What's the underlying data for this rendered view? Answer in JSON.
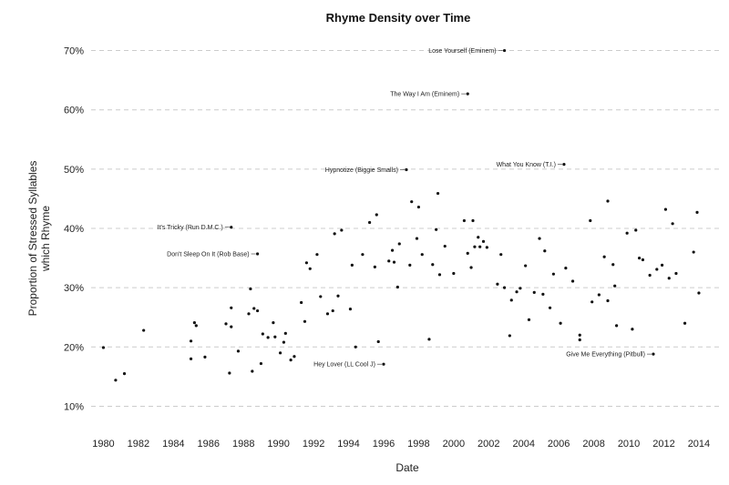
{
  "chart_data": {
    "type": "scatter",
    "title": "Rhyme Density over Time",
    "xlabel": "Date",
    "ylabel_lines": [
      "Proportion of Stressed Syllables",
      "which Rhyme"
    ],
    "xlim": [
      1979.3,
      2015.2
    ],
    "ylim": [
      7,
      73
    ],
    "x_ticks": [
      1980,
      1982,
      1984,
      1986,
      1988,
      1990,
      1992,
      1994,
      1996,
      1998,
      2000,
      2002,
      2004,
      2006,
      2008,
      2010,
      2012,
      2014
    ],
    "y_ticks": [
      {
        "value": 10,
        "label": "10%"
      },
      {
        "value": 20,
        "label": "20%"
      },
      {
        "value": 30,
        "label": "30%"
      },
      {
        "value": 40,
        "label": "40%"
      },
      {
        "value": 50,
        "label": "50%"
      },
      {
        "value": 60,
        "label": "60%"
      },
      {
        "value": 70,
        "label": "70%"
      }
    ],
    "grid": "horizontal dashed",
    "point_color": "#111111",
    "annotations": [
      {
        "label": "Lose Yourself (Eminem)",
        "x": 2002.9,
        "y": 70.0
      },
      {
        "label": "The Way I Am (Eminem)",
        "x": 2000.8,
        "y": 62.7
      },
      {
        "label": "What You Know (T.I.)",
        "x": 2006.3,
        "y": 50.8
      },
      {
        "label": "Hypnotize (Biggie Smalls)",
        "x": 1997.3,
        "y": 49.9
      },
      {
        "label": "It's Tricky (Run D.M.C.)",
        "x": 1987.3,
        "y": 40.2
      },
      {
        "label": "Don't Sleep On It (Rob Base)",
        "x": 1988.8,
        "y": 35.7
      },
      {
        "label": "Hey Lover (LL Cool J)",
        "x": 1996.0,
        "y": 17.1
      },
      {
        "label": "Give Me Everything (Pitbull)",
        "x": 2011.4,
        "y": 18.8
      }
    ],
    "points": [
      [
        1980.0,
        19.9
      ],
      [
        1980.7,
        14.4
      ],
      [
        1981.2,
        15.5
      ],
      [
        1982.3,
        22.8
      ],
      [
        1985.0,
        21.0
      ],
      [
        1985.0,
        18.0
      ],
      [
        1985.2,
        24.1
      ],
      [
        1985.3,
        23.6
      ],
      [
        1985.8,
        18.3
      ],
      [
        1987.0,
        23.9
      ],
      [
        1987.2,
        15.6
      ],
      [
        1987.3,
        26.6
      ],
      [
        1987.3,
        23.4
      ],
      [
        1987.7,
        19.3
      ],
      [
        1988.3,
        25.6
      ],
      [
        1988.4,
        29.8
      ],
      [
        1988.5,
        15.9
      ],
      [
        1988.6,
        26.5
      ],
      [
        1988.8,
        26.1
      ],
      [
        1989.0,
        17.2
      ],
      [
        1989.1,
        22.2
      ],
      [
        1989.4,
        21.6
      ],
      [
        1989.7,
        24.1
      ],
      [
        1989.8,
        21.7
      ],
      [
        1990.1,
        19.0
      ],
      [
        1990.3,
        20.8
      ],
      [
        1990.4,
        22.3
      ],
      [
        1990.7,
        17.8
      ],
      [
        1990.9,
        18.4
      ],
      [
        1991.3,
        27.5
      ],
      [
        1991.5,
        24.3
      ],
      [
        1991.6,
        34.2
      ],
      [
        1991.8,
        33.2
      ],
      [
        1992.2,
        35.6
      ],
      [
        1992.4,
        28.5
      ],
      [
        1992.8,
        25.6
      ],
      [
        1993.1,
        26.1
      ],
      [
        1993.2,
        39.1
      ],
      [
        1993.4,
        28.6
      ],
      [
        1993.6,
        39.7
      ],
      [
        1994.1,
        26.4
      ],
      [
        1994.2,
        33.8
      ],
      [
        1994.4,
        20.0
      ],
      [
        1994.8,
        35.6
      ],
      [
        1995.2,
        41.0
      ],
      [
        1995.5,
        33.5
      ],
      [
        1995.6,
        42.3
      ],
      [
        1995.7,
        20.9
      ],
      [
        1996.3,
        34.5
      ],
      [
        1996.5,
        36.3
      ],
      [
        1996.6,
        34.3
      ],
      [
        1996.8,
        30.1
      ],
      [
        1996.9,
        37.4
      ],
      [
        1997.5,
        33.8
      ],
      [
        1997.6,
        44.5
      ],
      [
        1997.9,
        38.3
      ],
      [
        1998.0,
        43.6
      ],
      [
        1998.2,
        35.6
      ],
      [
        1998.6,
        21.3
      ],
      [
        1998.8,
        33.9
      ],
      [
        1999.0,
        39.8
      ],
      [
        1999.1,
        45.9
      ],
      [
        1999.2,
        32.2
      ],
      [
        1999.5,
        37.0
      ],
      [
        2000.0,
        32.4
      ],
      [
        2000.6,
        41.3
      ],
      [
        2000.8,
        35.8
      ],
      [
        2001.0,
        33.4
      ],
      [
        2001.1,
        41.3
      ],
      [
        2001.2,
        36.9
      ],
      [
        2001.4,
        38.5
      ],
      [
        2001.5,
        36.9
      ],
      [
        2001.7,
        37.8
      ],
      [
        2001.9,
        36.8
      ],
      [
        2002.5,
        30.6
      ],
      [
        2002.7,
        35.6
      ],
      [
        2002.9,
        30.0
      ],
      [
        2003.2,
        21.9
      ],
      [
        2003.3,
        27.9
      ],
      [
        2003.6,
        29.3
      ],
      [
        2003.8,
        29.9
      ],
      [
        2004.1,
        33.7
      ],
      [
        2004.3,
        24.6
      ],
      [
        2004.6,
        29.2
      ],
      [
        2004.9,
        38.3
      ],
      [
        2005.1,
        28.9
      ],
      [
        2005.2,
        36.2
      ],
      [
        2005.5,
        26.6
      ],
      [
        2005.7,
        32.3
      ],
      [
        2006.1,
        24.0
      ],
      [
        2006.4,
        33.3
      ],
      [
        2006.8,
        31.1
      ],
      [
        2007.2,
        22.0
      ],
      [
        2007.2,
        21.2
      ],
      [
        2007.8,
        41.3
      ],
      [
        2007.9,
        27.6
      ],
      [
        2008.3,
        28.8
      ],
      [
        2008.6,
        35.2
      ],
      [
        2008.8,
        44.6
      ],
      [
        2008.8,
        27.8
      ],
      [
        2009.1,
        33.9
      ],
      [
        2009.2,
        30.3
      ],
      [
        2009.3,
        23.6
      ],
      [
        2009.9,
        39.2
      ],
      [
        2010.2,
        23.0
      ],
      [
        2010.4,
        39.7
      ],
      [
        2010.6,
        35.0
      ],
      [
        2010.8,
        34.7
      ],
      [
        2011.2,
        32.1
      ],
      [
        2011.6,
        33.1
      ],
      [
        2011.9,
        33.8
      ],
      [
        2012.1,
        43.2
      ],
      [
        2012.3,
        31.6
      ],
      [
        2012.5,
        40.8
      ],
      [
        2012.7,
        32.4
      ],
      [
        2013.2,
        24.0
      ],
      [
        2013.7,
        36.0
      ],
      [
        2013.9,
        42.7
      ],
      [
        2014.0,
        29.1
      ]
    ]
  }
}
